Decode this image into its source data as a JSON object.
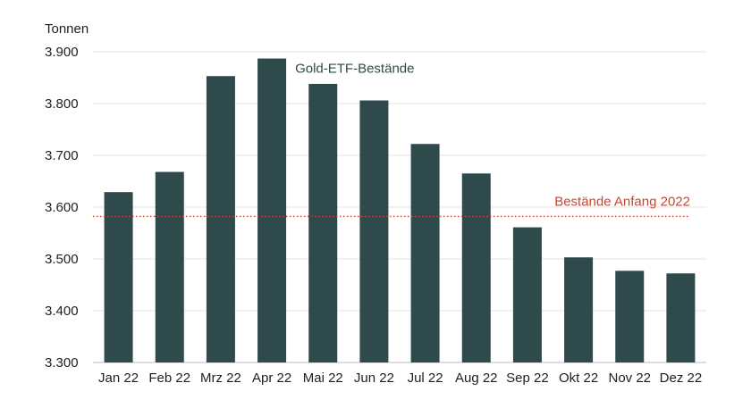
{
  "chart_data": {
    "type": "bar",
    "ylabel": "Tonnen",
    "ylim": [
      3300,
      3900
    ],
    "yticks": [
      3300,
      3400,
      3500,
      3600,
      3700,
      3800,
      3900
    ],
    "ytick_labels": [
      "3.300",
      "3.400",
      "3.500",
      "3.600",
      "3.700",
      "3.800",
      "3.900"
    ],
    "grid": true,
    "categories": [
      "Jan 22",
      "Feb 22",
      "Mrz 22",
      "Apr 22",
      "Mai 22",
      "Jun 22",
      "Jul 22",
      "Aug 22",
      "Sep 22",
      "Okt 22",
      "Nov 22",
      "Dez 22"
    ],
    "series": [
      {
        "name": "Gold-ETF-Bestände",
        "color": "#2f4a4c",
        "values": [
          3629,
          3668,
          3853,
          3887,
          3838,
          3806,
          3722,
          3665,
          3561,
          3503,
          3477,
          3472
        ]
      }
    ],
    "reference_line": {
      "label": "Bestände Anfang 2022",
      "value": 3582,
      "color": "#c8462c",
      "style": "dotted"
    }
  }
}
